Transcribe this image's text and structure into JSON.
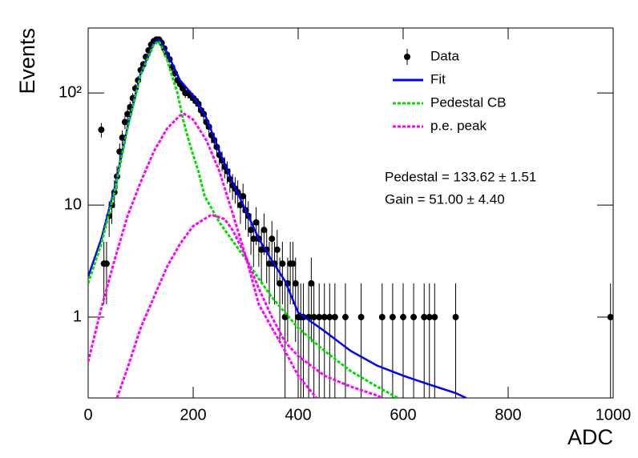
{
  "chart_data": {
    "type": "scatter",
    "ylog": true,
    "xlabel": "ADC",
    "ylabel": "Events",
    "xlim": [
      0,
      1000
    ],
    "xticks": [
      0,
      200,
      400,
      600,
      800,
      1000
    ],
    "ylim": [
      0.19,
      380
    ],
    "yticks": [
      1,
      10,
      {
        "value": 100,
        "label": "10²"
      }
    ],
    "legend": "top-right",
    "annotations": [
      "Pedestal = 133.62 ± 1.51",
      "Gain = 51.00 ± 4.40"
    ],
    "series": [
      {
        "name": "Data",
        "type": "points",
        "color": "#000000",
        "x": [
          25,
          30,
          35,
          40,
          45,
          50,
          55,
          60,
          65,
          70,
          75,
          80,
          85,
          90,
          95,
          100,
          105,
          110,
          115,
          120,
          125,
          130,
          135,
          140,
          145,
          150,
          155,
          160,
          165,
          170,
          175,
          180,
          185,
          190,
          195,
          200,
          205,
          210,
          215,
          220,
          225,
          230,
          235,
          240,
          245,
          250,
          255,
          260,
          265,
          270,
          275,
          280,
          285,
          290,
          295,
          300,
          305,
          310,
          315,
          320,
          325,
          330,
          335,
          340,
          345,
          350,
          355,
          360,
          365,
          370,
          375,
          380,
          385,
          390,
          395,
          400,
          405,
          410,
          420,
          425,
          430,
          440,
          450,
          460,
          470,
          490,
          520,
          560,
          580,
          600,
          620,
          640,
          650,
          660,
          700,
          995
        ],
        "values": [
          47,
          3,
          3,
          8,
          10,
          13,
          18,
          30,
          40,
          55,
          65,
          75,
          90,
          110,
          130,
          160,
          180,
          210,
          240,
          270,
          290,
          300,
          300,
          280,
          250,
          220,
          200,
          170,
          150,
          130,
          120,
          110,
          100,
          100,
          95,
          90,
          85,
          80,
          70,
          65,
          55,
          50,
          42,
          38,
          33,
          28,
          25,
          22,
          20,
          17,
          15,
          14,
          13,
          10,
          12,
          9,
          8,
          6,
          5,
          7,
          5,
          4,
          6,
          4,
          3,
          5,
          3,
          4,
          2,
          3,
          1,
          2,
          3,
          3,
          2,
          1,
          1,
          1,
          1,
          2,
          1,
          1,
          1,
          1,
          1,
          1,
          1,
          1,
          1,
          1,
          1,
          1,
          1,
          1,
          1,
          1
        ],
        "errors": [
          6.9,
          1.7,
          1.7,
          2.8,
          3.2,
          3.6,
          4.2,
          5.5,
          6.3,
          7.4,
          8.1,
          8.7,
          9.5,
          10.5,
          11.4,
          12.6,
          13.4,
          14.5,
          15.5,
          16.4,
          17.0,
          17.3,
          17.3,
          16.7,
          15.8,
          14.8,
          14.1,
          13.0,
          12.2,
          11.4,
          11.0,
          10.5,
          10,
          10,
          9.7,
          9.5,
          9.2,
          8.9,
          8.4,
          8.1,
          7.4,
          7.1,
          6.5,
          6.2,
          5.7,
          5.3,
          5,
          4.7,
          4.5,
          4.1,
          3.9,
          3.7,
          3.6,
          3.2,
          3.5,
          3,
          2.8,
          2.4,
          2.2,
          2.6,
          2.2,
          2,
          2.4,
          2,
          1.7,
          2.2,
          1.7,
          2,
          1.4,
          1.7,
          1,
          1.4,
          1.7,
          1.7,
          1.4,
          1,
          1,
          1,
          1,
          1.4,
          1,
          1,
          1,
          1,
          1,
          1,
          1,
          1,
          1,
          1,
          1,
          1,
          1,
          1,
          1,
          1
        ]
      },
      {
        "name": "Fit",
        "type": "line",
        "style": "solid",
        "color": "#0000ff",
        "x": [
          0,
          25,
          50,
          75,
          100,
          125,
          135,
          150,
          175,
          200,
          225,
          250,
          275,
          300,
          325,
          350,
          375,
          400,
          450,
          500,
          550,
          600,
          650,
          700,
          720
        ],
        "values": [
          2.3,
          5,
          14,
          50,
          150,
          280,
          300,
          230,
          130,
          95,
          60,
          30,
          16,
          9,
          5,
          3.2,
          2.1,
          1.1,
          0.75,
          0.5,
          0.37,
          0.3,
          0.25,
          0.21,
          0.19
        ]
      },
      {
        "name": "Pedestal CB",
        "type": "line",
        "style": "dotted",
        "color": "#00dd00",
        "x": [
          0,
          25,
          50,
          75,
          100,
          125,
          135,
          150,
          160,
          170,
          180,
          190,
          200,
          210,
          222,
          250,
          275,
          300,
          325,
          350,
          400,
          450,
          500,
          550,
          590
        ],
        "values": [
          2,
          4.5,
          13,
          48,
          145,
          270,
          290,
          200,
          140,
          100,
          60,
          40,
          28,
          20,
          12,
          7,
          4.8,
          3.3,
          2.2,
          1.5,
          0.8,
          0.5,
          0.33,
          0.24,
          0.19
        ]
      },
      {
        "name": "p.e. peak",
        "type": "line",
        "style": "dotted",
        "color": "#ff00ff",
        "x": [
          0,
          25,
          50,
          75,
          100,
          125,
          150,
          175,
          183,
          200,
          225,
          250,
          275,
          300,
          325,
          350,
          375,
          400,
          435
        ],
        "values": [
          0.4,
          1.2,
          3.2,
          8,
          16,
          30,
          48,
          63,
          65,
          58,
          38,
          20,
          8.5,
          3.5,
          1.3,
          0.8,
          0.5,
          0.3,
          0.19
        ]
      },
      {
        "type": "line",
        "style": "dotted",
        "color": "#ff00ff",
        "x": [
          55,
          75,
          100,
          125,
          150,
          175,
          200,
          235,
          260,
          275,
          300,
          325,
          350,
          375,
          400,
          450,
          500,
          550,
          560
        ],
        "values": [
          0.19,
          0.35,
          0.8,
          1.5,
          2.8,
          4.5,
          6.5,
          8.2,
          7.5,
          6,
          3.5,
          1.8,
          1,
          0.6,
          0.45,
          0.3,
          0.24,
          0.2,
          0.19
        ]
      }
    ]
  }
}
